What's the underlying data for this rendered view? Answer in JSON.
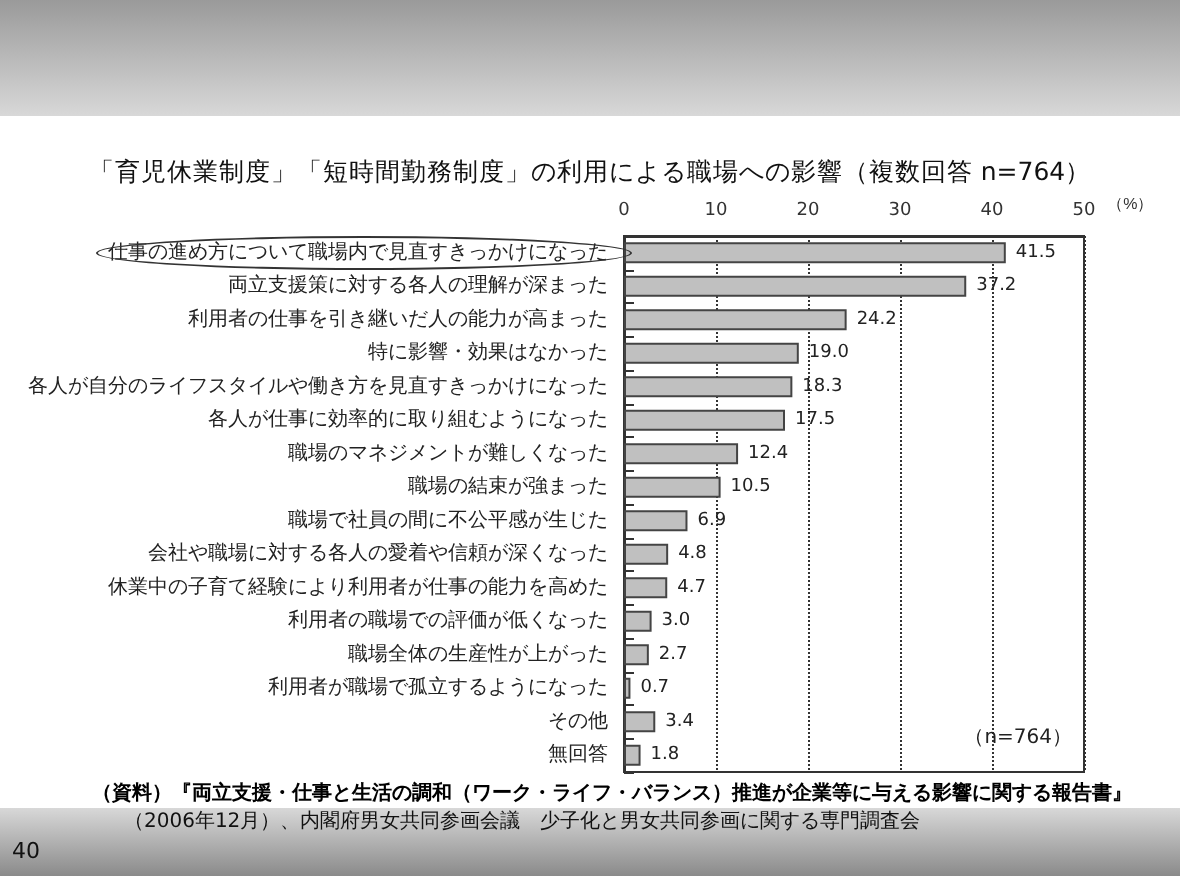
{
  "chart_data": {
    "type": "bar",
    "orientation": "horizontal",
    "title": "「育児休業制度」「短時間勤務制度」の利用による職場への影響（複数回答 n=764）",
    "xlabel": "（%）",
    "categories": [
      "仕事の進め方について職場内で見直すきっかけになった",
      "両立支援策に対する各人の理解が深まった",
      "利用者の仕事を引き継いだ人の能力が高まった",
      "特に影響・効果はなかった",
      "各人が自分のライフスタイルや働き方を見直すきっかけになった",
      "各人が仕事に効率的に取り組むようになった",
      "職場のマネジメントが難しくなった",
      "職場の結束が強まった",
      "職場で社員の間に不公平感が生じた",
      "会社や職場に対する各人の愛着や信頼が深くなった",
      "休業中の子育て経験により利用者が仕事の能力を高めた",
      "利用者の職場での評価が低くなった",
      "職場全体の生産性が上がった",
      "利用者が職場で孤立するようになった",
      "その他",
      "無回答"
    ],
    "values": [
      41.5,
      37.2,
      24.2,
      19.0,
      18.3,
      17.5,
      12.4,
      10.5,
      6.9,
      4.8,
      4.7,
      3.0,
      2.7,
      0.7,
      3.4,
      1.8
    ],
    "value_labels": [
      "41.5",
      "37.2",
      "24.2",
      "19.0",
      "18.3",
      "17.5",
      "12.4",
      "10.5",
      "6.9",
      "4.8",
      "4.7",
      "3.0",
      "2.7",
      "0.7",
      "3.4",
      "1.8"
    ],
    "color": "#c0c0c0",
    "xlim": [
      0,
      50
    ],
    "xticks": [
      0,
      10,
      20,
      30,
      40,
      50
    ],
    "grid": "x",
    "line_style": "dotted",
    "annotations": [
      "（n=764）",
      "（資料）『両立支援・仕事と生活の調和（ワーク・ライフ・バランス）推進が企業等に与える影響に関する報告書』",
      "（2006年12月）、内閣府男女共同参画会議　少子化と男女共同参画に関する専門調査会",
      "40"
    ]
  }
}
